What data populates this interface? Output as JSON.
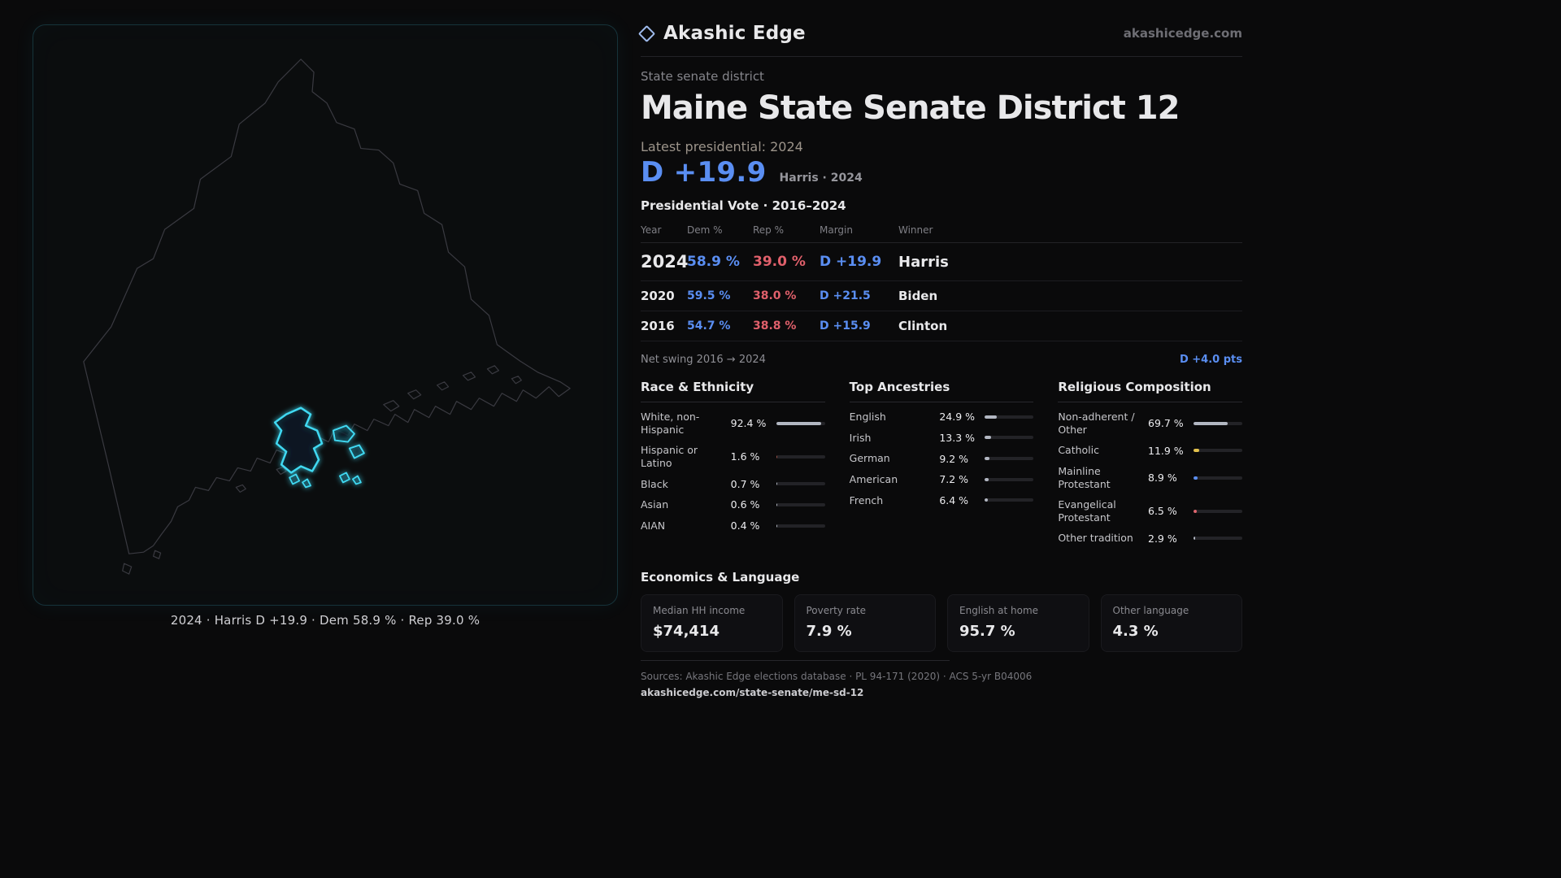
{
  "brand": {
    "name": "Akashic Edge",
    "domain": "akashicedge.com",
    "icon": "diamond-outline"
  },
  "page": {
    "kicker": "State senate district",
    "title": "Maine State Senate District 12",
    "latest_label": "Latest presidential: 2024",
    "headline_margin": "D +19.9",
    "headline_note": "Harris · 2024"
  },
  "map": {
    "caption": "2024 · Harris D +19.9 · Dem 58.9 % · Rep 39.0 %",
    "district_color": "#3fd9f2"
  },
  "swing": {
    "label": "Net swing 2016 → 2024",
    "value": "D +4.0 pts"
  },
  "chart_data": [
    {
      "type": "table",
      "title": "Presidential Vote · 2016–2024",
      "columns": [
        "Year",
        "Dem %",
        "Rep %",
        "Margin",
        "Winner"
      ],
      "rows": [
        {
          "year": "2024",
          "dem": "58.9 %",
          "rep": "39.0 %",
          "margin": "D +19.9",
          "winner": "Harris"
        },
        {
          "year": "2020",
          "dem": "59.5 %",
          "rep": "38.0 %",
          "margin": "D +21.5",
          "winner": "Biden"
        },
        {
          "year": "2016",
          "dem": "54.7 %",
          "rep": "38.8 %",
          "margin": "D +15.9",
          "winner": "Clinton"
        }
      ]
    },
    {
      "type": "bar",
      "title": "Race & Ethnicity",
      "unit": "%",
      "xlim": [
        0,
        100
      ],
      "rows": [
        {
          "label": "White, non-Hispanic",
          "value": "92.4 %",
          "pct": 92.4
        },
        {
          "label": "Hispanic or Latino",
          "value": "1.6 %",
          "pct": 1.6,
          "color": "#9c5148"
        },
        {
          "label": "Black",
          "value": "0.7 %",
          "pct": 0.7
        },
        {
          "label": "Asian",
          "value": "0.6 %",
          "pct": 0.6
        },
        {
          "label": "AIAN",
          "value": "0.4 %",
          "pct": 0.4
        }
      ]
    },
    {
      "type": "bar",
      "title": "Top Ancestries",
      "unit": "%",
      "xlim": [
        0,
        100
      ],
      "rows": [
        {
          "label": "English",
          "value": "24.9 %",
          "pct": 24.9
        },
        {
          "label": "Irish",
          "value": "13.3 %",
          "pct": 13.3
        },
        {
          "label": "German",
          "value": "9.2 %",
          "pct": 9.2
        },
        {
          "label": "American",
          "value": "7.2 %",
          "pct": 7.2
        },
        {
          "label": "French",
          "value": "6.4 %",
          "pct": 6.4
        }
      ]
    },
    {
      "type": "bar",
      "title": "Religious Composition",
      "unit": "%",
      "xlim": [
        0,
        100
      ],
      "rows": [
        {
          "label": "Non-adherent / Other",
          "value": "69.7 %",
          "pct": 69.7
        },
        {
          "label": "Catholic",
          "value": "11.9 %",
          "pct": 11.9,
          "color": "#e3c14c"
        },
        {
          "label": "Mainline Protestant",
          "value": "8.9 %",
          "pct": 8.9,
          "color": "#5b8ef0"
        },
        {
          "label": "Evangelical Protestant",
          "value": "6.5 %",
          "pct": 6.5,
          "color": "#e0666e"
        },
        {
          "label": "Other tradition",
          "value": "2.9 %",
          "pct": 2.9
        }
      ]
    }
  ],
  "economics": {
    "title": "Economics & Language",
    "stats": [
      {
        "label": "Median HH income",
        "value": "$74,414"
      },
      {
        "label": "Poverty rate",
        "value": "7.9 %"
      },
      {
        "label": "English at home",
        "value": "95.7 %"
      },
      {
        "label": "Other language",
        "value": "4.3 %"
      }
    ]
  },
  "footer": {
    "sources": "Sources: Akashic Edge elections database · PL 94-171 (2020) · ACS 5-yr B04006",
    "permalink": "akashicedge.com/state-senate/me-sd-12"
  },
  "colors": {
    "dem": "#5a8ef2",
    "rep": "#e0606b",
    "district": "#3fd9f2",
    "accent_yellow": "#e3c14c"
  }
}
